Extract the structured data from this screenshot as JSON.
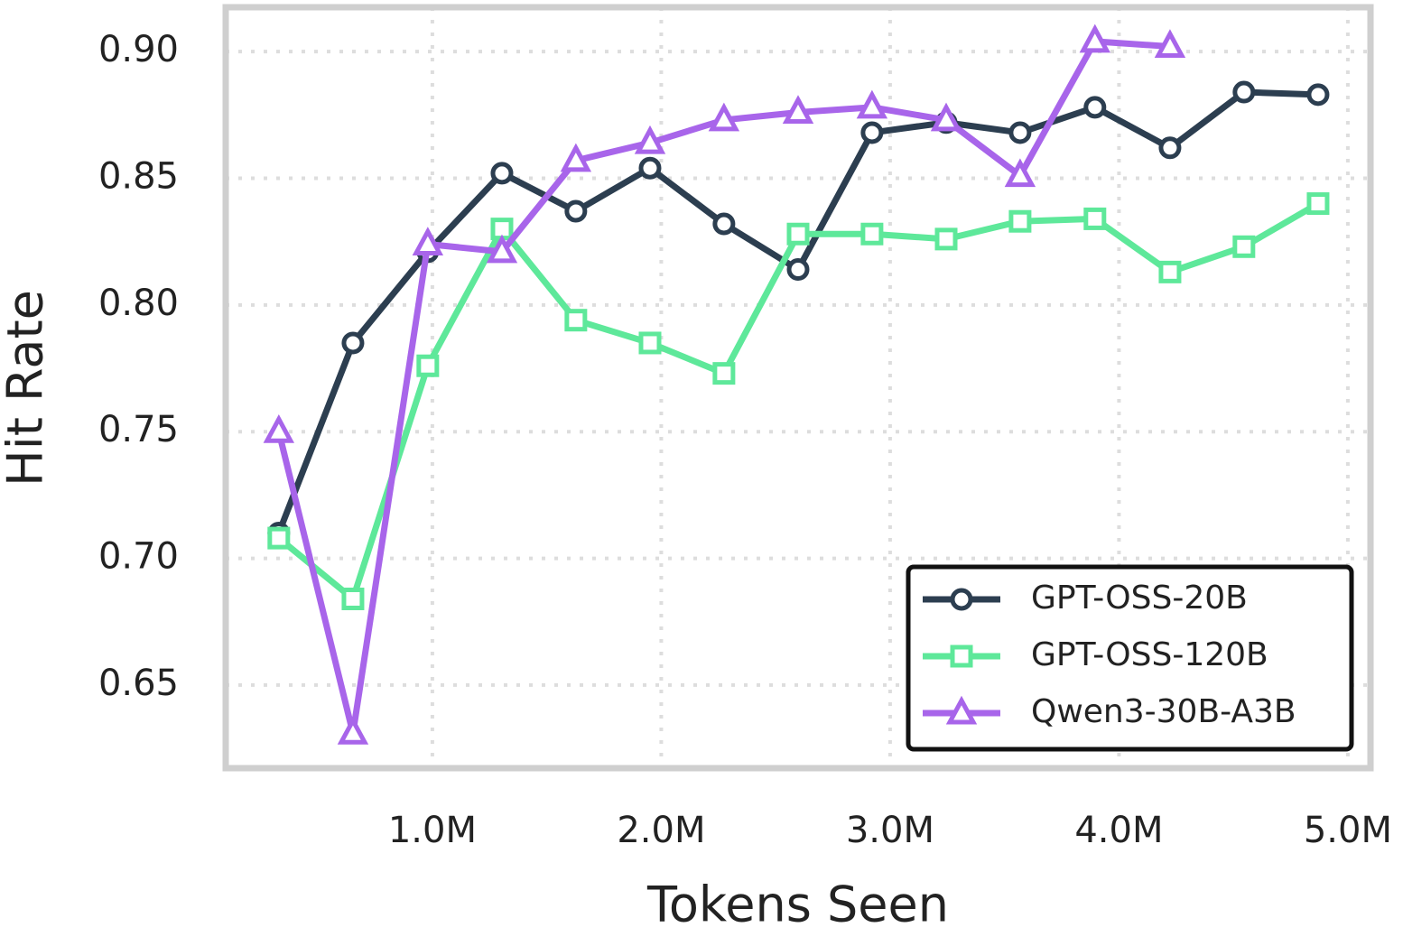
{
  "chart_data": {
    "type": "line",
    "x_label": "Tokens Seen",
    "y_label": "Hit Rate",
    "x": [
      329000,
      653000,
      980000,
      1304000,
      1627000,
      1951000,
      2274000,
      2598000,
      2921000,
      3245000,
      3568000,
      3895000,
      4223000,
      4546000,
      4870000
    ],
    "series": [
      {
        "name": "GPT-OSS-20B",
        "color": "#2c3e50",
        "marker": "circle",
        "values": [
          0.71,
          0.785,
          0.821,
          0.852,
          0.837,
          0.854,
          0.832,
          0.814,
          0.868,
          0.872,
          0.868,
          0.878,
          0.862,
          0.884,
          0.883
        ]
      },
      {
        "name": "GPT-OSS-120B",
        "color": "#5ee89a",
        "marker": "square",
        "values": [
          0.708,
          0.684,
          0.776,
          0.83,
          0.794,
          0.785,
          0.773,
          0.828,
          0.828,
          0.826,
          0.833,
          0.834,
          0.813,
          0.823,
          0.84
        ]
      },
      {
        "name": "Qwen3-30B-A3B",
        "color": "#a865ea",
        "marker": "triangle",
        "values": [
          0.75,
          0.631,
          0.824,
          0.821,
          0.857,
          0.864,
          0.873,
          0.876,
          0.878,
          0.873,
          0.851,
          0.904,
          0.902,
          null,
          null
        ]
      }
    ],
    "xlim": [
      97000,
      5099000
    ],
    "xticks": [
      {
        "value": 1000000,
        "label": "1.0M"
      },
      {
        "value": 2000000,
        "label": "2.0M"
      },
      {
        "value": 3000000,
        "label": "3.0M"
      },
      {
        "value": 4000000,
        "label": "4.0M"
      },
      {
        "value": 5000000,
        "label": "5.0M"
      }
    ],
    "ylim": [
      0.6172,
      0.9175
    ],
    "yticks": [
      0.65,
      {
        "value": 0.7,
        "label": "0.70"
      },
      0.75,
      {
        "value": 0.8,
        "label": "0.80"
      },
      0.85,
      {
        "value": 0.9,
        "label": "0.90"
      }
    ],
    "grid": true,
    "legend": "lower right"
  }
}
